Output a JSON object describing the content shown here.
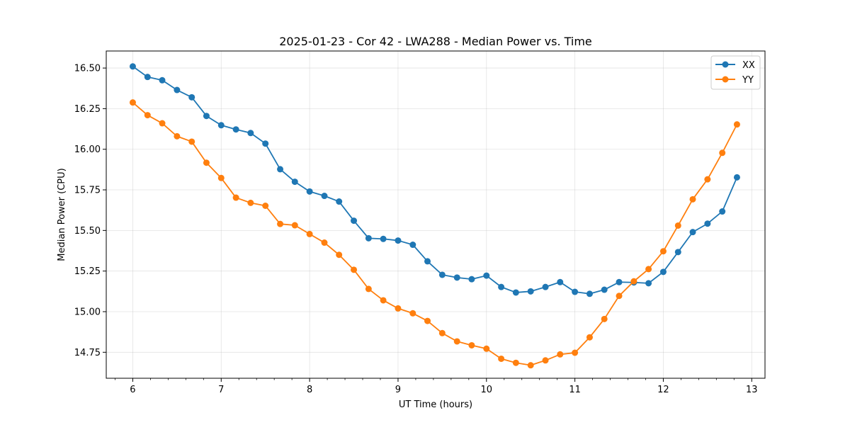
{
  "chart_data": {
    "type": "line",
    "title": "2025-01-23 - Cor 42 - LWA288 - Median Power vs. Time",
    "xlabel": "UT Time (hours)",
    "ylabel": "Median Power (CPU)",
    "xlim": [
      5.7,
      13.15
    ],
    "ylim": [
      14.59,
      16.605
    ],
    "xticks": [
      6,
      7,
      8,
      9,
      10,
      11,
      12,
      13
    ],
    "yticks": [
      14.75,
      15.0,
      15.25,
      15.5,
      15.75,
      16.0,
      16.25,
      16.5
    ],
    "ytick_labels": [
      "14.75",
      "15.00",
      "15.25",
      "15.50",
      "15.75",
      "16.00",
      "16.25",
      "16.50"
    ],
    "grid": true,
    "legend_position": "top-right",
    "x": [
      6.0,
      6.167,
      6.333,
      6.5,
      6.667,
      6.833,
      7.0,
      7.167,
      7.333,
      7.5,
      7.667,
      7.833,
      8.0,
      8.167,
      8.333,
      8.5,
      8.667,
      8.833,
      9.0,
      9.167,
      9.333,
      9.5,
      9.667,
      9.833,
      10.0,
      10.167,
      10.333,
      10.5,
      10.667,
      10.833,
      11.0,
      11.167,
      11.333,
      11.5,
      11.667,
      11.833,
      12.0,
      12.167,
      12.333,
      12.5,
      12.667,
      12.833
    ],
    "series": [
      {
        "name": "XX",
        "color": "#1f77b4",
        "values": [
          16.51,
          16.445,
          16.425,
          16.365,
          16.32,
          16.205,
          16.148,
          16.122,
          16.1,
          16.035,
          15.877,
          15.8,
          15.74,
          15.713,
          15.678,
          15.56,
          15.452,
          15.448,
          15.438,
          15.412,
          15.31,
          15.227,
          15.21,
          15.2,
          15.222,
          15.152,
          15.118,
          15.125,
          15.152,
          15.182,
          15.122,
          15.11,
          15.135,
          15.182,
          15.18,
          15.175,
          15.245,
          15.367,
          15.49,
          15.542,
          15.617,
          15.827
        ]
      },
      {
        "name": "YY",
        "color": "#ff7f0e",
        "values": [
          16.288,
          16.21,
          16.16,
          16.08,
          16.047,
          15.917,
          15.823,
          15.702,
          15.67,
          15.652,
          15.54,
          15.532,
          15.478,
          15.425,
          15.35,
          15.258,
          15.14,
          15.07,
          15.02,
          14.99,
          14.943,
          14.868,
          14.817,
          14.793,
          14.772,
          14.71,
          14.685,
          14.67,
          14.7,
          14.737,
          14.747,
          14.842,
          14.955,
          15.097,
          15.187,
          15.262,
          15.372,
          15.53,
          15.692,
          15.815,
          15.978,
          16.153
        ]
      }
    ]
  }
}
